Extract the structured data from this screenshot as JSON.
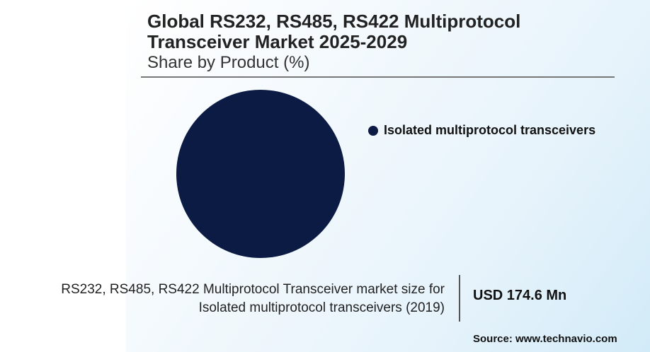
{
  "header": {
    "title": "Global RS232, RS485, RS422 Multiprotocol Transceiver Market 2025-2029",
    "subtitle": "Share by Product (%)"
  },
  "chart_data": {
    "type": "pie",
    "title": "Global RS232, RS485, RS422 Multiprotocol Transceiver Market 2025-2029",
    "subtitle": "Share by Product (%)",
    "categories": [
      "Isolated multiprotocol transceivers"
    ],
    "values": [
      100
    ],
    "colors": [
      "#0b1b44"
    ],
    "legend_position": "right"
  },
  "legend": {
    "items": [
      {
        "label": "Isolated multiprotocol transceivers",
        "color": "#0b1b44"
      }
    ]
  },
  "footer": {
    "description_line1": "RS232, RS485, RS422 Multiprotocol Transceiver market size for",
    "description_line2": "Isolated multiprotocol transceivers (2019)",
    "value": "USD 174.6 Mn",
    "source": "Source: www.technavio.com"
  }
}
